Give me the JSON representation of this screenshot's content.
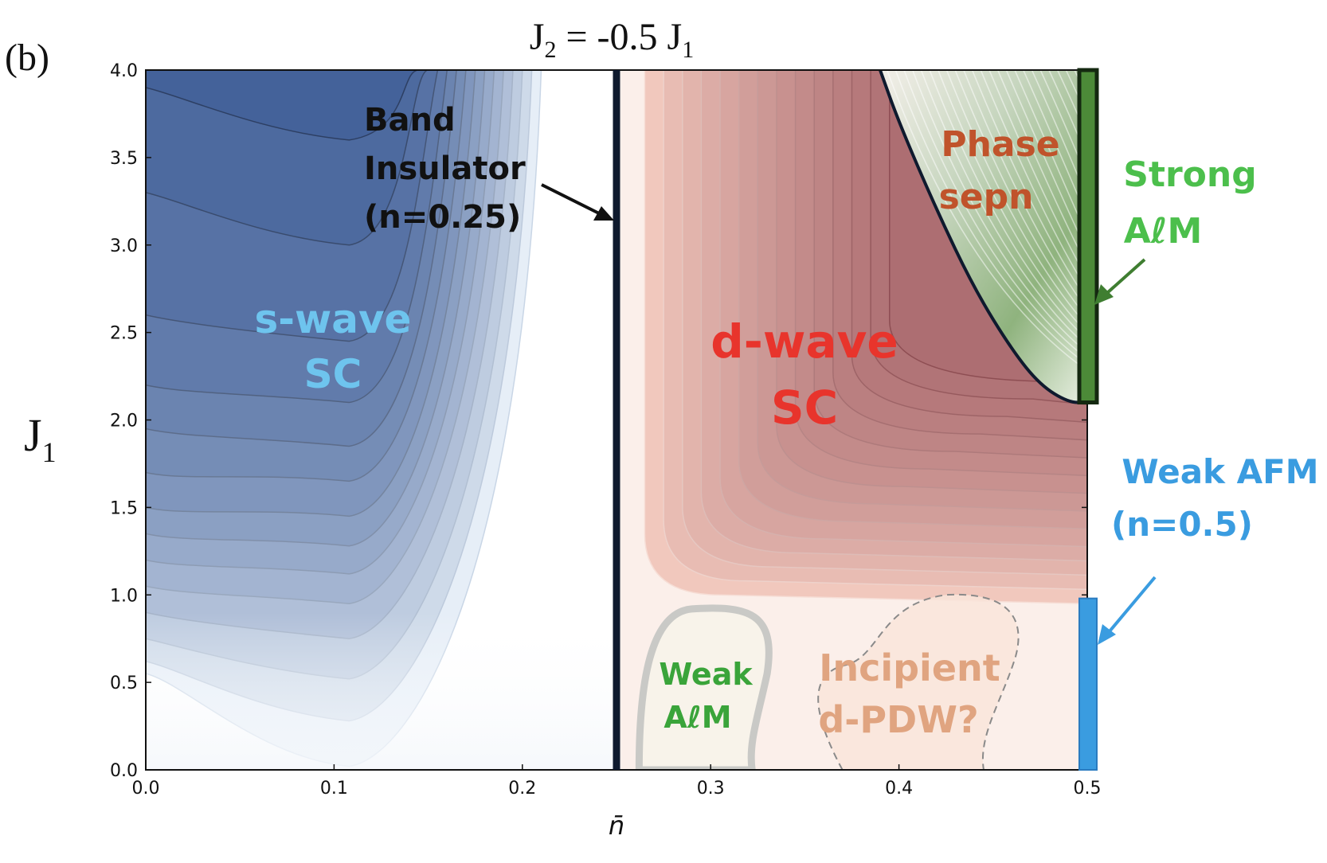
{
  "panel_label": "(b)",
  "title": {
    "main": "J",
    "sub1": "2",
    "mid": " = -0.5 J",
    "sub2": "1"
  },
  "ylabel": {
    "main": "J",
    "sub": "1"
  },
  "xlabel": "n̄",
  "chart_data": {
    "type": "contour",
    "title": "J2 = -0.5 J1",
    "xlabel": "n̄",
    "ylabel": "J1",
    "xlim": [
      0.0,
      0.5
    ],
    "ylim": [
      0.0,
      4.0
    ],
    "x_ticks": [
      0.0,
      0.1,
      0.2,
      0.3,
      0.4,
      0.5
    ],
    "x_tick_labels": [
      "0.0",
      "0.1",
      "0.2",
      "0.3",
      "0.4",
      "0.5"
    ],
    "y_ticks": [
      0.0,
      0.5,
      1.0,
      1.5,
      2.0,
      2.5,
      3.0,
      3.5,
      4.0
    ],
    "y_tick_labels": [
      "0.0",
      "0.5",
      "1.0",
      "1.5",
      "2.0",
      "2.5",
      "3.0",
      "3.5",
      "4.0"
    ],
    "band_insulator_line": {
      "x": 0.25
    },
    "regions": [
      {
        "name": "s-wave SC",
        "label_lines": [
          "s-wave",
          "SC"
        ],
        "color": "#6ec4ee",
        "anchor": [
          0.1,
          2.4
        ]
      },
      {
        "name": "d-wave SC",
        "label_lines": [
          "d-wave",
          "SC"
        ],
        "color": "#e8342c",
        "anchor": [
          0.35,
          2.25
        ]
      },
      {
        "name": "Phase separation",
        "label_lines": [
          "Phase",
          "sepn"
        ],
        "color": "#c0532b",
        "anchor": [
          0.46,
          3.45
        ]
      },
      {
        "name": "Weak AlM",
        "label_lines": [
          "Weak",
          "AℓM"
        ],
        "color": "#3aa43a",
        "anchor": [
          0.3,
          0.4
        ]
      },
      {
        "name": "Incipient d-PDW?",
        "label_lines": [
          "Incipient",
          "d-PDW?"
        ],
        "color": "#e0a480",
        "anchor": [
          0.405,
          0.4
        ]
      }
    ],
    "annotations": [
      {
        "label_lines": [
          "Band",
          "Insulator",
          "(n=0.25)"
        ],
        "color": "#111111",
        "points_to": [
          0.25,
          3.2
        ]
      },
      {
        "label_lines": [
          "Strong",
          "AℓM"
        ],
        "color": "#4cbf4c",
        "points_to": [
          0.5,
          2.7
        ]
      },
      {
        "label_lines": [
          "Weak AFM",
          "(n=0.5)"
        ],
        "color": "#3a9ce0",
        "points_to": [
          0.5,
          0.7
        ]
      }
    ],
    "edge_bars": [
      {
        "name": "Strong AlM",
        "x": 0.5,
        "y_range": [
          2.1,
          4.0
        ],
        "color": "#4c8a38"
      },
      {
        "name": "Weak AFM",
        "x": 0.5,
        "y_range": [
          0.0,
          0.98
        ],
        "color": "#3a9ce0"
      }
    ],
    "phase_boundary": {
      "points": [
        [
          0.39,
          4.0
        ],
        [
          0.4,
          3.7
        ],
        [
          0.42,
          3.2
        ],
        [
          0.44,
          2.75
        ],
        [
          0.46,
          2.4
        ],
        [
          0.475,
          2.2
        ],
        [
          0.49,
          2.1
        ],
        [
          0.5,
          2.1
        ]
      ]
    },
    "s_wave_contours": [
      {
        "y_shoulder": 0.8,
        "x_end": 0.21,
        "y_min": 0.02,
        "edge_y": 0.55
      },
      {
        "y_shoulder": 0.85,
        "x_end": 0.205,
        "y_min": 0.28,
        "edge_y": 0.62
      },
      {
        "y_shoulder": 0.9,
        "x_end": 0.2,
        "y_min": 0.52,
        "edge_y": 0.75
      },
      {
        "y_shoulder": 0.95,
        "x_end": 0.195,
        "y_min": 0.75,
        "edge_y": 0.9
      },
      {
        "y_shoulder": 1.0,
        "x_end": 0.19,
        "y_min": 0.95,
        "edge_y": 1.05
      },
      {
        "y_shoulder": 1.05,
        "x_end": 0.185,
        "y_min": 1.12,
        "edge_y": 1.2
      },
      {
        "y_shoulder": 1.1,
        "x_end": 0.18,
        "y_min": 1.28,
        "edge_y": 1.35
      },
      {
        "y_shoulder": 1.15,
        "x_end": 0.175,
        "y_min": 1.45,
        "edge_y": 1.5
      },
      {
        "y_shoulder": 1.2,
        "x_end": 0.17,
        "y_min": 1.65,
        "edge_y": 1.7
      },
      {
        "y_shoulder": 1.25,
        "x_end": 0.165,
        "y_min": 1.85,
        "edge_y": 1.95
      },
      {
        "y_shoulder": 1.3,
        "x_end": 0.16,
        "y_min": 2.1,
        "edge_y": 2.2
      },
      {
        "y_shoulder": 1.35,
        "x_end": 0.155,
        "y_min": 2.45,
        "edge_y": 2.6
      },
      {
        "y_shoulder": 1.4,
        "x_end": 0.15,
        "y_min": 3.0,
        "edge_y": 3.3
      },
      {
        "y_shoulder": 1.45,
        "x_end": 0.145,
        "y_min": 3.6,
        "edge_y": 3.9
      }
    ],
    "d_wave_contours": [
      {
        "x_left": 0.265,
        "y_bottom": 1.0
      },
      {
        "x_left": 0.275,
        "y_bottom": 1.08
      },
      {
        "x_left": 0.285,
        "y_bottom": 1.16
      },
      {
        "x_left": 0.295,
        "y_bottom": 1.24
      },
      {
        "x_left": 0.305,
        "y_bottom": 1.32
      },
      {
        "x_left": 0.315,
        "y_bottom": 1.42
      },
      {
        "x_left": 0.325,
        "y_bottom": 1.52
      },
      {
        "x_left": 0.335,
        "y_bottom": 1.62
      },
      {
        "x_left": 0.345,
        "y_bottom": 1.72
      },
      {
        "x_left": 0.355,
        "y_bottom": 1.82
      },
      {
        "x_left": 0.365,
        "y_bottom": 1.92
      },
      {
        "x_left": 0.375,
        "y_bottom": 2.02
      },
      {
        "x_left": 0.385,
        "y_bottom": 2.12
      },
      {
        "x_left": 0.395,
        "y_bottom": 2.22
      }
    ],
    "colors": {
      "s_wave": "#44629a",
      "d_wave": "#e0705f",
      "boundary": "#0f1a2e"
    }
  }
}
